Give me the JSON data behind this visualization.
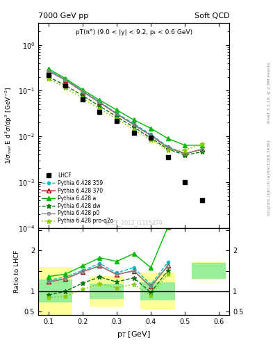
{
  "title_left": "7000 GeV pp",
  "title_right": "Soft QCD",
  "annotation": "pT(π°) (9.0 < |y| < 9.2, pₜ < 0.6 GeV)",
  "watermark": "LHCF_2012_I1115479",
  "ylabel_ratio": "Ratio to LHCF",
  "xlabel": "p$_{T}$ [GeV]",
  "right_label": "Rivet 3.1.10, ≥ 2.9M events",
  "right_label2": "mcplots.cern.ch [arXiv:1306.3436]",
  "lhcf_x": [
    0.1,
    0.15,
    0.2,
    0.25,
    0.3,
    0.35,
    0.4,
    0.45,
    0.5,
    0.55
  ],
  "lhcf_y": [
    0.22,
    0.13,
    0.065,
    0.034,
    0.022,
    0.012,
    0.0095,
    0.0035,
    0.001,
    0.0004
  ],
  "py359_x": [
    0.1,
    0.15,
    0.2,
    0.25,
    0.3,
    0.35,
    0.4,
    0.45,
    0.5,
    0.55
  ],
  "py359_y": [
    0.28,
    0.175,
    0.098,
    0.057,
    0.032,
    0.019,
    0.011,
    0.006,
    0.0042,
    0.0052
  ],
  "py370_x": [
    0.1,
    0.15,
    0.2,
    0.25,
    0.3,
    0.35,
    0.4,
    0.45,
    0.5,
    0.55
  ],
  "py370_y": [
    0.27,
    0.17,
    0.096,
    0.055,
    0.031,
    0.018,
    0.0105,
    0.0057,
    0.0042,
    0.0052
  ],
  "pya_x": [
    0.1,
    0.15,
    0.2,
    0.25,
    0.3,
    0.35,
    0.4,
    0.45,
    0.5,
    0.55
  ],
  "pya_y": [
    0.3,
    0.185,
    0.105,
    0.062,
    0.038,
    0.023,
    0.015,
    0.009,
    0.0064,
    0.0064
  ],
  "pydw_x": [
    0.1,
    0.15,
    0.2,
    0.25,
    0.3,
    0.35,
    0.4,
    0.45,
    0.5,
    0.55
  ],
  "pydw_y": [
    0.2,
    0.13,
    0.078,
    0.046,
    0.027,
    0.016,
    0.0092,
    0.0053,
    0.0039,
    0.0046
  ],
  "pyp0_x": [
    0.1,
    0.15,
    0.2,
    0.25,
    0.3,
    0.35,
    0.4,
    0.45,
    0.5,
    0.55
  ],
  "pyp0_y": [
    0.27,
    0.17,
    0.096,
    0.055,
    0.031,
    0.018,
    0.0105,
    0.0057,
    0.0042,
    0.0052
  ],
  "pyq2o_x": [
    0.1,
    0.15,
    0.2,
    0.25,
    0.3,
    0.35,
    0.4,
    0.45,
    0.5,
    0.55
  ],
  "pyq2o_y": [
    0.185,
    0.115,
    0.068,
    0.04,
    0.024,
    0.014,
    0.0085,
    0.005,
    0.005,
    0.0068
  ],
  "ratio_x": [
    0.1,
    0.15,
    0.2,
    0.25,
    0.3,
    0.35,
    0.4,
    0.45
  ],
  "ratio_359": [
    1.27,
    1.35,
    1.51,
    1.68,
    1.45,
    1.58,
    1.16,
    1.71
  ],
  "ratio_370": [
    1.23,
    1.31,
    1.48,
    1.62,
    1.41,
    1.5,
    1.11,
    1.63
  ],
  "ratio_a": [
    1.36,
    1.42,
    1.62,
    1.82,
    1.73,
    1.92,
    1.58,
    2.57
  ],
  "ratio_dw": [
    0.91,
    1.0,
    1.2,
    1.35,
    1.23,
    1.33,
    0.97,
    1.51
  ],
  "ratio_p0": [
    1.23,
    1.31,
    1.48,
    1.62,
    1.41,
    1.5,
    1.11,
    1.63
  ],
  "ratio_q2o": [
    0.84,
    0.88,
    1.05,
    1.18,
    1.09,
    1.17,
    0.9,
    1.43
  ],
  "band_edges": [
    0.07,
    0.17,
    0.22,
    0.32,
    0.37,
    0.47,
    0.52,
    0.62
  ],
  "green_lo": [
    0.72,
    0.82,
    0.78,
    1.3
  ],
  "green_hi": [
    1.28,
    1.18,
    1.22,
    1.7
  ],
  "yellow_lo": [
    0.4,
    0.62,
    0.55,
    1.28
  ],
  "yellow_hi": [
    1.6,
    1.38,
    1.45,
    1.72
  ],
  "color_359": "#00bbcc",
  "color_370": "#aa0000",
  "color_a": "#00bb00",
  "color_dw": "#007700",
  "color_p0": "#888888",
  "color_q2o": "#88cc00",
  "ylim_main": [
    0.0001,
    3.0
  ],
  "ylim_ratio": [
    0.42,
    2.55
  ],
  "xlim": [
    0.07,
    0.63
  ]
}
